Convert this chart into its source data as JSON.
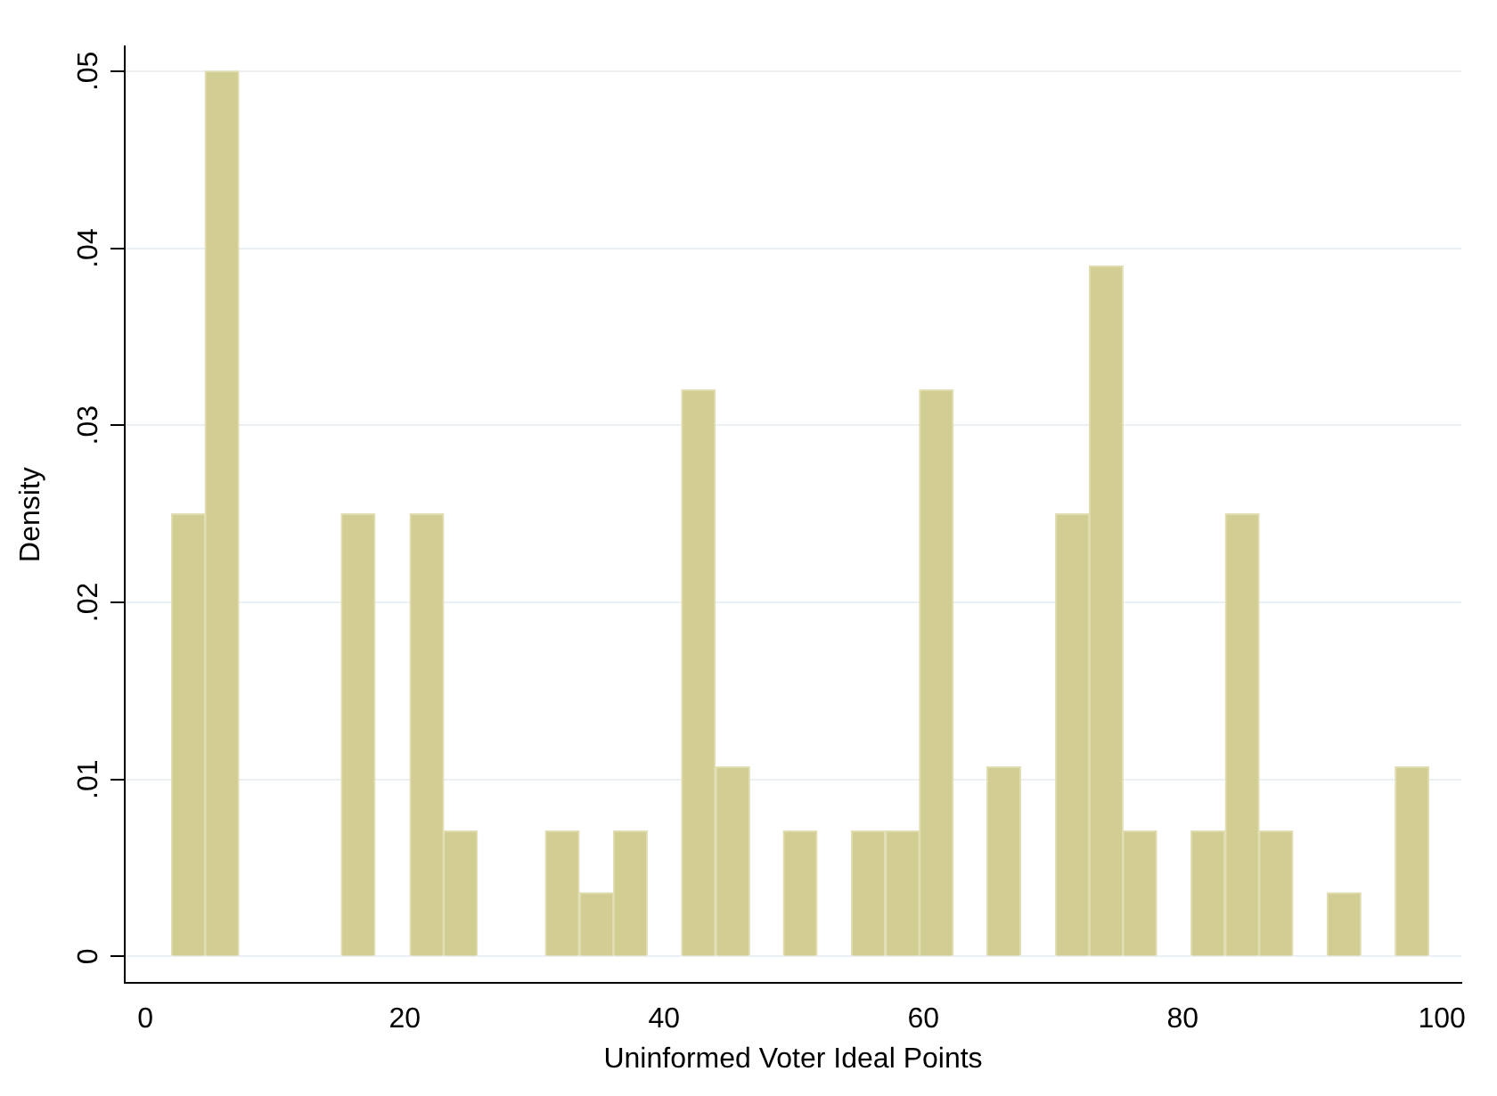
{
  "chart_data": {
    "type": "histogram",
    "xlabel": "Uninformed Voter Ideal Points",
    "ylabel": "Density",
    "color": "#d2cd92",
    "bins": [
      2.0,
      4.6,
      7.2,
      9.9,
      12.5,
      15.1,
      17.7,
      20.4,
      23.0,
      25.6,
      28.2,
      30.8,
      33.5,
      36.1,
      38.7,
      41.3,
      44.0,
      46.6,
      49.2,
      51.8,
      54.4,
      57.1,
      59.7,
      62.3,
      64.9,
      67.5,
      70.2,
      72.8,
      75.4,
      78.0,
      80.6,
      83.3,
      85.9,
      88.5,
      91.1,
      93.8,
      96.4,
      99.0
    ],
    "values": [
      0.025,
      0.05,
      0,
      0,
      0,
      0.025,
      0,
      0.025,
      0.0071,
      0,
      0,
      0.0071,
      0.0036,
      0.0071,
      0,
      0.032,
      0.0107,
      0,
      0.0071,
      0,
      0.0071,
      0.0071,
      0.032,
      0,
      0.0107,
      0,
      0.025,
      0.039,
      0.0071,
      0,
      0.0071,
      0.025,
      0.0071,
      0,
      0.0036,
      0,
      0.0107
    ],
    "xlim": [
      -1.6,
      101.5
    ],
    "xticks": [
      0,
      20,
      40,
      60,
      80,
      100
    ],
    "ylim": [
      -0.0015,
      0.0514
    ],
    "yticks": [
      0,
      {
        "value": 0.01,
        "label": ".01"
      },
      {
        "value": 0.02,
        "label": ".02"
      },
      {
        "value": 0.03,
        "label": ".03"
      },
      {
        "value": 0.04,
        "label": ".04"
      },
      {
        "value": 0.05,
        "label": ".05"
      }
    ],
    "grid": "y"
  }
}
